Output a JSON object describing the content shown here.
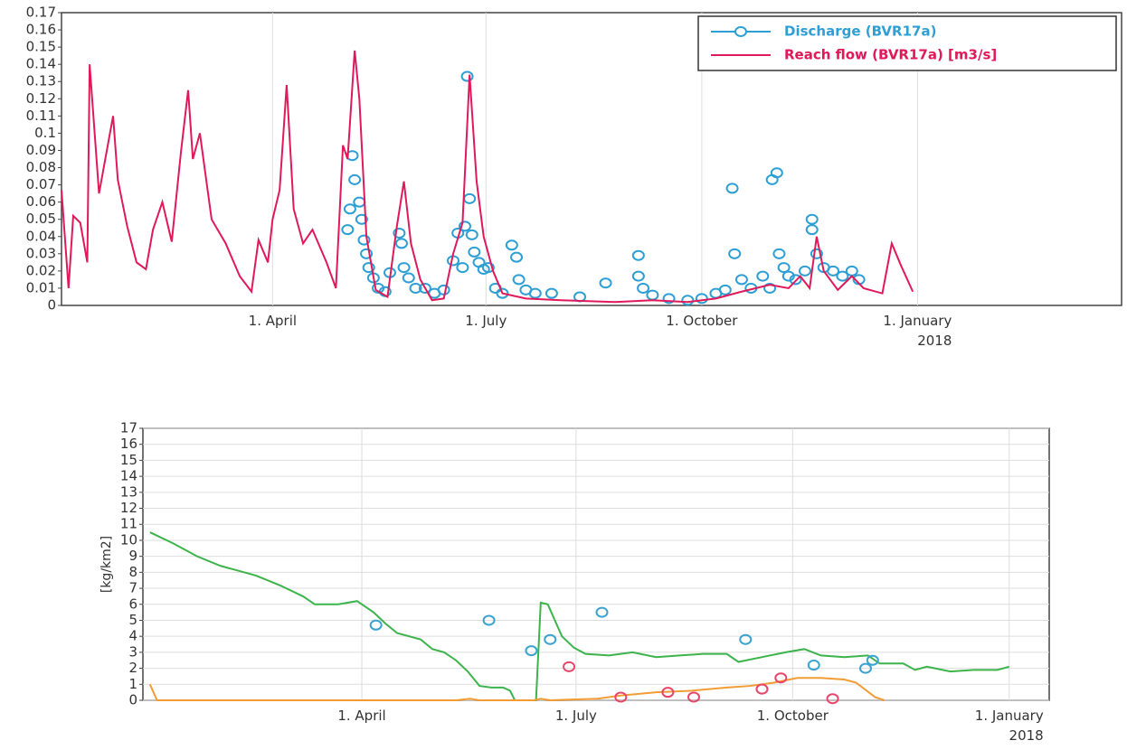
{
  "chart_data": [
    {
      "type": "line",
      "xlim": [
        0,
        452
      ],
      "ylim": [
        0,
        0.17
      ],
      "xticks": [
        {
          "value": 90,
          "label": "1. April"
        },
        {
          "value": 181,
          "label": "1. July"
        },
        {
          "value": 273,
          "label": "1. October"
        },
        {
          "value": 365,
          "label": "1. January\n2018"
        }
      ],
      "yticks": [
        0,
        0.01,
        0.02,
        0.03,
        0.04,
        0.05,
        0.06,
        0.07,
        0.08,
        0.09,
        0.1,
        0.11,
        0.12,
        0.13,
        0.14,
        0.15,
        0.16,
        0.17
      ],
      "grid": "x",
      "legend": "upper right",
      "series": [
        {
          "name": "Discharge (BVR17a)",
          "color": "#2e9fd4",
          "style": "markers",
          "x": [
            122,
            123,
            124,
            125,
            127,
            128,
            129,
            130,
            131,
            133,
            135,
            138,
            140,
            144,
            145,
            146,
            148,
            151,
            155,
            159,
            163,
            167,
            169,
            171,
            172,
            173,
            174,
            175,
            176,
            178,
            180,
            182,
            185,
            188,
            192,
            194,
            195,
            198,
            202,
            209,
            221,
            232,
            246,
            246,
            248,
            252,
            259,
            267,
            273,
            279,
            283,
            286,
            287,
            290,
            294,
            299,
            302,
            303,
            305,
            306,
            308,
            310,
            313,
            317,
            320,
            320,
            322,
            325,
            329,
            333,
            337,
            340
          ],
          "values": [
            0.044,
            0.056,
            0.087,
            0.073,
            0.06,
            0.05,
            0.038,
            0.03,
            0.022,
            0.016,
            0.01,
            0.008,
            0.019,
            0.042,
            0.036,
            0.022,
            0.016,
            0.01,
            0.01,
            0.007,
            0.009,
            0.026,
            0.042,
            0.022,
            0.046,
            0.133,
            0.062,
            0.041,
            0.031,
            0.025,
            0.021,
            0.022,
            0.01,
            0.007,
            0.035,
            0.028,
            0.015,
            0.009,
            0.007,
            0.007,
            0.005,
            0.013,
            0.029,
            0.017,
            0.01,
            0.006,
            0.004,
            0.003,
            0.004,
            0.007,
            0.009,
            0.068,
            0.03,
            0.015,
            0.01,
            0.017,
            0.01,
            0.073,
            0.077,
            0.03,
            0.022,
            0.017,
            0.015,
            0.02,
            0.05,
            0.044,
            0.03,
            0.022,
            0.02,
            0.017,
            0.02,
            0.015
          ]
        },
        {
          "name": "Reach flow (BVR17a) [m3/s]",
          "color": "#e0195a",
          "style": "line",
          "x": [
            0,
            3,
            5,
            8,
            11,
            12,
            16,
            18,
            22,
            24,
            28,
            32,
            36,
            39,
            43,
            47,
            51,
            54,
            56,
            59,
            64,
            70,
            76,
            81,
            84,
            88,
            90,
            93,
            96,
            99,
            103,
            107,
            113,
            117,
            120,
            122,
            125,
            127,
            130,
            134,
            139,
            143,
            146,
            149,
            153,
            158,
            163,
            167,
            171,
            174,
            177,
            180,
            184,
            188,
            198,
            213,
            236,
            252,
            267,
            279,
            290,
            302,
            310,
            315,
            319,
            322,
            325,
            331,
            337,
            342,
            350,
            354,
            358,
            363
          ],
          "values": [
            0.067,
            0.01,
            0.052,
            0.048,
            0.025,
            0.14,
            0.065,
            0.08,
            0.11,
            0.073,
            0.046,
            0.025,
            0.021,
            0.044,
            0.06,
            0.037,
            0.09,
            0.125,
            0.085,
            0.1,
            0.05,
            0.036,
            0.017,
            0.008,
            0.038,
            0.025,
            0.05,
            0.067,
            0.128,
            0.056,
            0.036,
            0.044,
            0.025,
            0.01,
            0.093,
            0.085,
            0.148,
            0.12,
            0.04,
            0.009,
            0.005,
            0.046,
            0.072,
            0.036,
            0.015,
            0.003,
            0.004,
            0.03,
            0.048,
            0.134,
            0.072,
            0.04,
            0.02,
            0.007,
            0.004,
            0.003,
            0.002,
            0.003,
            0.002,
            0.004,
            0.008,
            0.012,
            0.01,
            0.017,
            0.01,
            0.04,
            0.02,
            0.009,
            0.017,
            0.01,
            0.007,
            0.036,
            0.023,
            0.008
          ]
        }
      ]
    },
    {
      "type": "line",
      "ylabel": "[kg/km2]",
      "xlim": [
        -3,
        382
      ],
      "ylim": [
        0,
        17
      ],
      "xticks": [
        {
          "value": 90,
          "label": "1. April"
        },
        {
          "value": 181,
          "label": "1. July"
        },
        {
          "value": 273,
          "label": "1. October"
        },
        {
          "value": 365,
          "label": "1. January\n2018"
        }
      ],
      "yticks": [
        0,
        1,
        2,
        3,
        4,
        5,
        6,
        7,
        8,
        9,
        10,
        11,
        12,
        13,
        14,
        15,
        16,
        17
      ],
      "grid": "both",
      "series": [
        {
          "color": "#3cb44b",
          "style": "line",
          "x": [
            0,
            10,
            20,
            30,
            45,
            55,
            65,
            70,
            80,
            88,
            95,
            100,
            105,
            115,
            120,
            125,
            130,
            135,
            140,
            145,
            150,
            153,
            155,
            164,
            166,
            169,
            172,
            175,
            180,
            185,
            195,
            205,
            215,
            225,
            235,
            245,
            250,
            260,
            270,
            278,
            285,
            295,
            305,
            310,
            320,
            325,
            330,
            340,
            350,
            360,
            365
          ],
          "values": [
            10.5,
            9.8,
            9,
            8.4,
            7.8,
            7.2,
            6.5,
            6,
            6,
            6.2,
            5.5,
            4.8,
            4.2,
            3.8,
            3.2,
            3,
            2.5,
            1.8,
            0.9,
            0.8,
            0.8,
            0.6,
            0,
            0,
            6.1,
            6,
            5,
            4,
            3.3,
            2.9,
            2.8,
            3,
            2.7,
            2.8,
            2.9,
            2.9,
            2.4,
            2.7,
            3,
            3.2,
            2.8,
            2.7,
            2.8,
            2.3,
            2.3,
            1.9,
            2.1,
            1.8,
            1.9,
            1.9,
            2.1
          ]
        },
        {
          "color": "#f39c33",
          "style": "line",
          "x": [
            0,
            3,
            130,
            136,
            140,
            163,
            166,
            170,
            190,
            200,
            215,
            230,
            245,
            255,
            265,
            275,
            285,
            295,
            300,
            308,
            312
          ],
          "values": [
            1,
            0,
            0,
            0.1,
            0,
            0,
            0.1,
            0,
            0.1,
            0.3,
            0.5,
            0.6,
            0.8,
            0.9,
            1.1,
            1.4,
            1.4,
            1.3,
            1.1,
            0.2,
            0
          ]
        },
        {
          "color": "#3ba3d0",
          "style": "markers",
          "x": [
            96,
            144,
            162,
            170,
            192,
            253,
            282,
            304,
            307
          ],
          "values": [
            4.7,
            5,
            3.1,
            3.8,
            5.5,
            3.8,
            2.2,
            2,
            2.5
          ]
        },
        {
          "color": "#e8456a",
          "style": "markers",
          "x": [
            178,
            200,
            220,
            231,
            260,
            268,
            290
          ],
          "values": [
            2.1,
            0.2,
            0.5,
            0.2,
            0.7,
            1.4,
            0.1
          ]
        }
      ]
    }
  ]
}
